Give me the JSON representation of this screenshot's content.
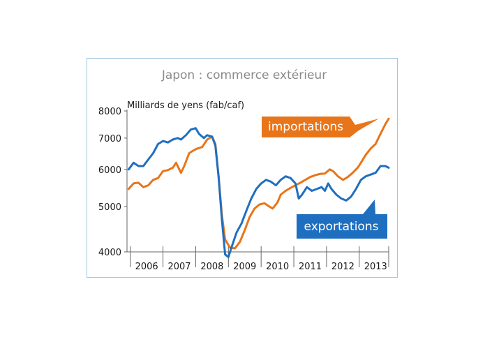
{
  "chart_data": {
    "type": "line",
    "title": "Japon : commerce extérieur",
    "unit_label": "Milliards de yens (fab/caf)",
    "y_scale": "log",
    "ylim": [
      4000,
      8000
    ],
    "y_ticks": [
      {
        "value": 4000,
        "label": "4000"
      },
      {
        "value": 5000,
        "label": "5000"
      },
      {
        "value": 6000,
        "label": "6000"
      },
      {
        "value": 7000,
        "label": "7000"
      },
      {
        "value": 8000,
        "label": "8000"
      }
    ],
    "x_range": [
      2005.9,
      2013.9
    ],
    "x_tick_labels": [
      "2006",
      "2007",
      "2008",
      "2009",
      "2010",
      "2011",
      "2012",
      "2013"
    ],
    "grid": false,
    "series": [
      {
        "name": "importations",
        "color": "#e8751a",
        "points": [
          [
            2005.95,
            5450
          ],
          [
            2006.1,
            5600
          ],
          [
            2006.25,
            5620
          ],
          [
            2006.4,
            5500
          ],
          [
            2006.55,
            5550
          ],
          [
            2006.7,
            5700
          ],
          [
            2006.85,
            5750
          ],
          [
            2007.0,
            5950
          ],
          [
            2007.15,
            5980
          ],
          [
            2007.3,
            6050
          ],
          [
            2007.4,
            6200
          ],
          [
            2007.55,
            5900
          ],
          [
            2007.65,
            6100
          ],
          [
            2007.8,
            6500
          ],
          [
            2007.95,
            6600
          ],
          [
            2008.05,
            6650
          ],
          [
            2008.2,
            6700
          ],
          [
            2008.35,
            6950
          ],
          [
            2008.5,
            7050
          ],
          [
            2008.6,
            6800
          ],
          [
            2008.7,
            5800
          ],
          [
            2008.8,
            4800
          ],
          [
            2008.9,
            4250
          ],
          [
            2009.05,
            4080
          ],
          [
            2009.2,
            4070
          ],
          [
            2009.35,
            4200
          ],
          [
            2009.5,
            4450
          ],
          [
            2009.65,
            4750
          ],
          [
            2009.8,
            4950
          ],
          [
            2009.95,
            5050
          ],
          [
            2010.1,
            5080
          ],
          [
            2010.25,
            5000
          ],
          [
            2010.35,
            4950
          ],
          [
            2010.5,
            5100
          ],
          [
            2010.6,
            5300
          ],
          [
            2010.75,
            5400
          ],
          [
            2010.9,
            5480
          ],
          [
            2011.05,
            5550
          ],
          [
            2011.2,
            5620
          ],
          [
            2011.35,
            5700
          ],
          [
            2011.5,
            5780
          ],
          [
            2011.65,
            5830
          ],
          [
            2011.8,
            5870
          ],
          [
            2011.95,
            5880
          ],
          [
            2012.1,
            6000
          ],
          [
            2012.2,
            5950
          ],
          [
            2012.35,
            5800
          ],
          [
            2012.5,
            5700
          ],
          [
            2012.65,
            5780
          ],
          [
            2012.8,
            5900
          ],
          [
            2012.95,
            6050
          ],
          [
            2013.05,
            6200
          ],
          [
            2013.2,
            6450
          ],
          [
            2013.35,
            6650
          ],
          [
            2013.5,
            6800
          ],
          [
            2013.65,
            7150
          ],
          [
            2013.8,
            7500
          ],
          [
            2013.9,
            7700
          ]
        ]
      },
      {
        "name": "exportations",
        "color": "#1f6fc0",
        "points": [
          [
            2005.95,
            6000
          ],
          [
            2006.1,
            6200
          ],
          [
            2006.25,
            6100
          ],
          [
            2006.4,
            6100
          ],
          [
            2006.55,
            6300
          ],
          [
            2006.7,
            6500
          ],
          [
            2006.85,
            6800
          ],
          [
            2007.0,
            6900
          ],
          [
            2007.15,
            6850
          ],
          [
            2007.3,
            6950
          ],
          [
            2007.45,
            7000
          ],
          [
            2007.55,
            6950
          ],
          [
            2007.7,
            7100
          ],
          [
            2007.85,
            7300
          ],
          [
            2008.0,
            7350
          ],
          [
            2008.1,
            7150
          ],
          [
            2008.25,
            7000
          ],
          [
            2008.35,
            7100
          ],
          [
            2008.5,
            7050
          ],
          [
            2008.6,
            6750
          ],
          [
            2008.7,
            5800
          ],
          [
            2008.8,
            4700
          ],
          [
            2008.9,
            3950
          ],
          [
            2009.0,
            3900
          ],
          [
            2009.1,
            4100
          ],
          [
            2009.25,
            4400
          ],
          [
            2009.4,
            4600
          ],
          [
            2009.55,
            4900
          ],
          [
            2009.7,
            5200
          ],
          [
            2009.85,
            5450
          ],
          [
            2010.0,
            5600
          ],
          [
            2010.15,
            5700
          ],
          [
            2010.3,
            5650
          ],
          [
            2010.45,
            5550
          ],
          [
            2010.6,
            5700
          ],
          [
            2010.75,
            5800
          ],
          [
            2010.9,
            5750
          ],
          [
            2011.05,
            5600
          ],
          [
            2011.15,
            5200
          ],
          [
            2011.25,
            5300
          ],
          [
            2011.4,
            5500
          ],
          [
            2011.55,
            5400
          ],
          [
            2011.7,
            5450
          ],
          [
            2011.85,
            5500
          ],
          [
            2011.95,
            5400
          ],
          [
            2012.05,
            5600
          ],
          [
            2012.15,
            5450
          ],
          [
            2012.3,
            5300
          ],
          [
            2012.45,
            5200
          ],
          [
            2012.6,
            5150
          ],
          [
            2012.75,
            5250
          ],
          [
            2012.9,
            5450
          ],
          [
            2013.05,
            5700
          ],
          [
            2013.2,
            5800
          ],
          [
            2013.35,
            5850
          ],
          [
            2013.5,
            5900
          ],
          [
            2013.65,
            6100
          ],
          [
            2013.8,
            6100
          ],
          [
            2013.9,
            6050
          ]
        ]
      }
    ]
  },
  "callouts": {
    "importations": {
      "label": "importations",
      "color": "#e8751a"
    },
    "exportations": {
      "label": "exportations",
      "color": "#1f6fc0"
    }
  },
  "colors": {
    "frame_border": "#9ec5e0",
    "title": "#8a8a8a",
    "axis": "#666666"
  }
}
